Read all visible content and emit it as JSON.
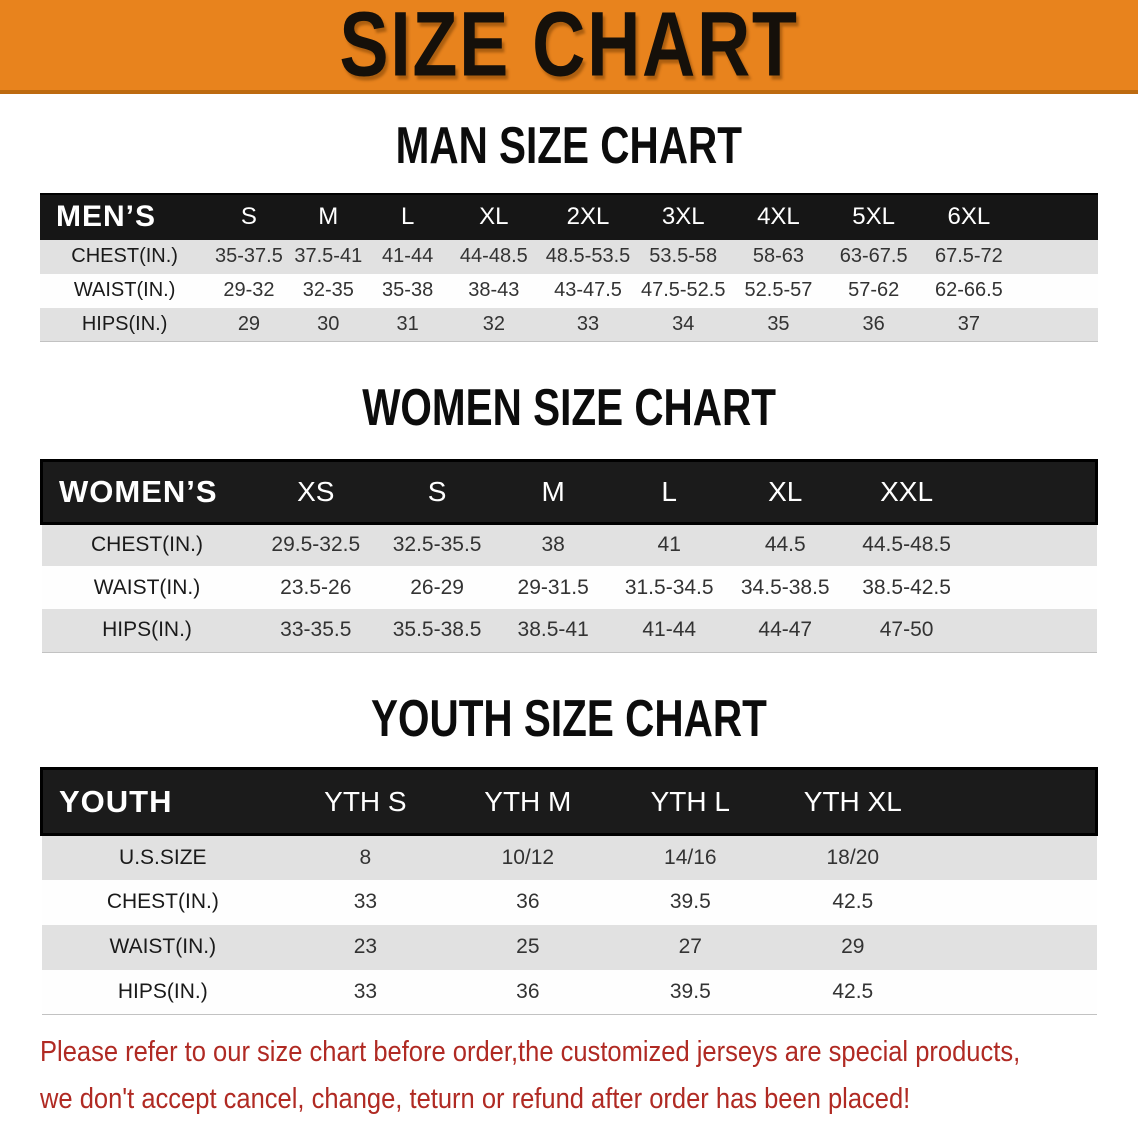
{
  "banner": {
    "title": "SIZE CHART"
  },
  "sections": [
    {
      "heading": "MAN SIZE CHART",
      "table": {
        "corner_label": "MEN’S",
        "columns": [
          "S",
          "M",
          "L",
          "XL",
          "2XL",
          "3XL",
          "4XL",
          "5XL",
          "6XL"
        ],
        "rows": [
          {
            "label": "CHEST(IN.)",
            "values": [
              "35-37.5",
              "37.5-41",
              "41-44",
              "44-48.5",
              "48.5-53.5",
              "53.5-58",
              "58-63",
              "63-67.5",
              "67.5-72"
            ]
          },
          {
            "label": "WAIST(IN.)",
            "values": [
              "29-32",
              "32-35",
              "35-38",
              "38-43",
              "43-47.5",
              "47.5-52.5",
              "52.5-57",
              "57-62",
              "62-66.5"
            ]
          },
          {
            "label": "HIPS(IN.)",
            "values": [
              "29",
              "30",
              "31",
              "32",
              "33",
              "34",
              "35",
              "36",
              "37"
            ]
          }
        ]
      }
    },
    {
      "heading": "WOMEN SIZE CHART",
      "table": {
        "corner_label": "WOMEN’S",
        "columns": [
          "XS",
          "S",
          "M",
          "L",
          "XL",
          "XXL"
        ],
        "rows": [
          {
            "label": "CHEST(IN.)",
            "values": [
              "29.5-32.5",
              "32.5-35.5",
              "38",
              "41",
              "44.5",
              "44.5-48.5"
            ]
          },
          {
            "label": "WAIST(IN.)",
            "values": [
              "23.5-26",
              "26-29",
              "29-31.5",
              "31.5-34.5",
              "34.5-38.5",
              "38.5-42.5"
            ]
          },
          {
            "label": "HIPS(IN.)",
            "values": [
              "33-35.5",
              "35.5-38.5",
              "38.5-41",
              "41-44",
              "44-47",
              "47-50"
            ]
          }
        ]
      }
    },
    {
      "heading": "YOUTH SIZE CHART",
      "table": {
        "corner_label": "YOUTH",
        "columns": [
          "YTH S",
          "YTH M",
          "YTH L",
          "YTH XL"
        ],
        "rows": [
          {
            "label": "U.S.SIZE",
            "values": [
              "8",
              "10/12",
              "14/16",
              "18/20"
            ]
          },
          {
            "label": "CHEST(IN.)",
            "values": [
              "33",
              "36",
              "39.5",
              "42.5"
            ]
          },
          {
            "label": "WAIST(IN.)",
            "values": [
              "23",
              "25",
              "27",
              "29"
            ]
          },
          {
            "label": "HIPS(IN.)",
            "values": [
              "33",
              "36",
              "39.5",
              "42.5"
            ]
          }
        ]
      }
    }
  ],
  "disclaimer": {
    "line1": "Please refer to our size chart before order,the customized jerseys are special products,",
    "line2": "we don't accept cancel, change, teturn or refund after order has been placed!"
  },
  "colors": {
    "banner_orange": "#E8831D",
    "banner_border": "#BD6A10",
    "header_bar_black": "#161616",
    "row_stripe_gray": "#E1E1E1",
    "disclaimer_red": "#B02A23"
  }
}
